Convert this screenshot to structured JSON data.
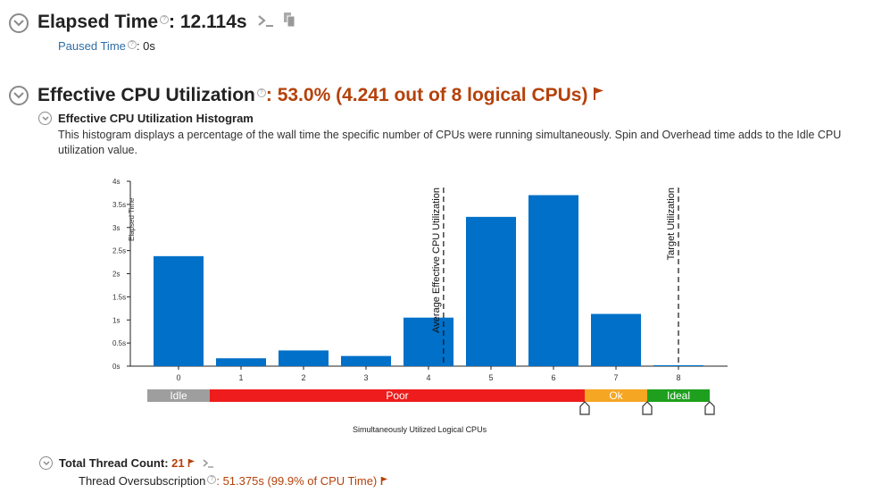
{
  "elapsed": {
    "label": "Elapsed Time",
    "value": ": 12.114s",
    "paused_label": "Paused Time",
    "paused_value": ":  0s"
  },
  "cpu": {
    "label": "Effective CPU Utilization",
    "value": ": 53.0% (4.241 out of 8 logical CPUs)",
    "histogram_title": "Effective CPU Utilization Histogram",
    "description": "This histogram displays a percentage of the wall time the specific number of CPUs were running simultaneously. Spin and Overhead time adds to the Idle CPU utilization value."
  },
  "bands": {
    "idle": "Idle",
    "poor": "Poor",
    "ok": "Ok",
    "ideal": "Ideal"
  },
  "threads": {
    "label": "Total Thread Count:",
    "value": "21",
    "oversub_label": "Thread Oversubscription",
    "oversub_value": ": 51.375s (99.9% of CPU Time)"
  },
  "colors": {
    "bar": "#0070c8",
    "accent": "#b5410a",
    "idle": "#9e9e9e",
    "poor": "#ee1c1c",
    "ok": "#f5a623",
    "ideal": "#1ea01e"
  },
  "icons": [
    "chevron-circle-down-icon",
    "help-icon",
    "terminal-icon",
    "copy-icon",
    "flag-icon"
  ],
  "chart_data": {
    "type": "bar",
    "categories": [
      "0",
      "1",
      "2",
      "3",
      "4",
      "5",
      "6",
      "7",
      "8"
    ],
    "values": [
      2.38,
      0.17,
      0.34,
      0.22,
      1.05,
      3.23,
      3.7,
      1.13,
      0.02
    ],
    "xlabel": "Simultaneously Utilized Logical CPUs",
    "ylabel": "Elapsed Time",
    "ylim": [
      0,
      4
    ],
    "yticks": [
      "0s",
      "0.5s",
      "1s",
      "1.5s",
      "2s",
      "2.5s",
      "3s",
      "3.5s",
      "4s"
    ],
    "lines": [
      {
        "x": 4.241,
        "label": "Average Effective CPU Utilization"
      },
      {
        "x": 8,
        "label": "Target Utilization"
      }
    ],
    "grid": false
  }
}
